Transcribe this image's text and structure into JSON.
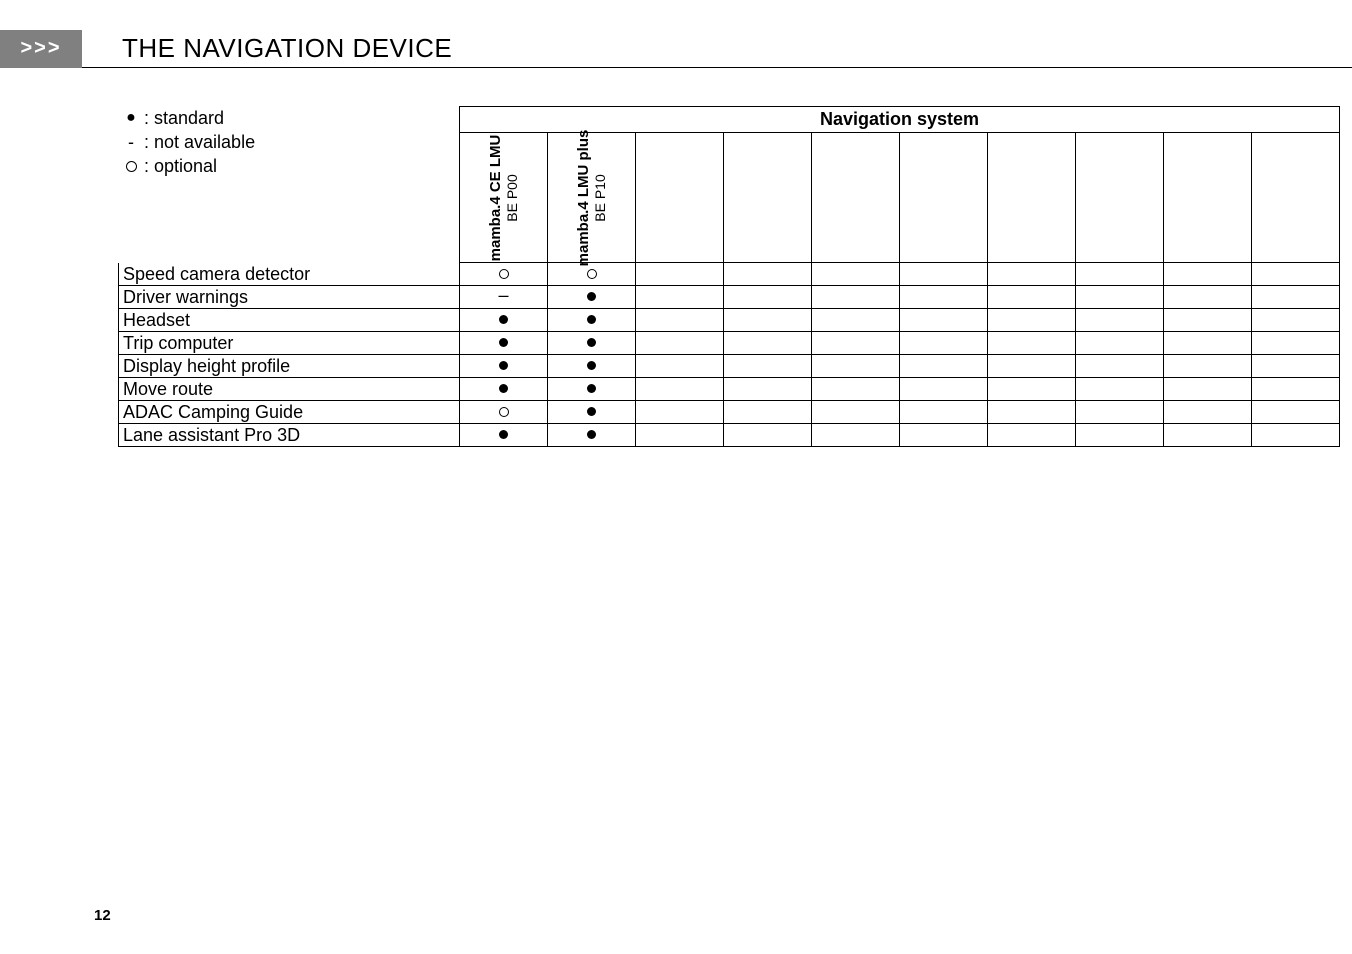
{
  "header": {
    "arrow": ">>>",
    "title": "THE NAVIGATION DEVICE"
  },
  "legend": {
    "standard": {
      "symbol": "●",
      "label": "standard"
    },
    "not_available": {
      "symbol": "-",
      "label": "not available"
    },
    "optional": {
      "symbol": "○",
      "label": "optional"
    }
  },
  "table": {
    "group_header": "Navigation system",
    "columns": [
      {
        "line1": "mamba.4 CE LMU",
        "line2": "BE P00"
      },
      {
        "line1": "mamba.4 LMU plus",
        "line2": "BE P10"
      },
      {
        "line1": "",
        "line2": ""
      },
      {
        "line1": "",
        "line2": ""
      },
      {
        "line1": "",
        "line2": ""
      },
      {
        "line1": "",
        "line2": ""
      },
      {
        "line1": "",
        "line2": ""
      },
      {
        "line1": "",
        "line2": ""
      },
      {
        "line1": "",
        "line2": ""
      },
      {
        "line1": "",
        "line2": ""
      }
    ],
    "rows": [
      {
        "feature": "Speed camera detector",
        "values": [
          "optional",
          "optional",
          "",
          "",
          "",
          "",
          "",
          "",
          "",
          ""
        ]
      },
      {
        "feature": "Driver warnings",
        "values": [
          "na",
          "standard",
          "",
          "",
          "",
          "",
          "",
          "",
          "",
          ""
        ]
      },
      {
        "feature": "Headset",
        "values": [
          "standard",
          "standard",
          "",
          "",
          "",
          "",
          "",
          "",
          "",
          ""
        ]
      },
      {
        "feature": "Trip computer",
        "values": [
          "standard",
          "standard",
          "",
          "",
          "",
          "",
          "",
          "",
          "",
          ""
        ]
      },
      {
        "feature": "Display height profile",
        "values": [
          "standard",
          "standard",
          "",
          "",
          "",
          "",
          "",
          "",
          "",
          ""
        ]
      },
      {
        "feature": "Move route",
        "values": [
          "standard",
          "standard",
          "",
          "",
          "",
          "",
          "",
          "",
          "",
          ""
        ]
      },
      {
        "feature": "ADAC Camping Guide",
        "values": [
          "optional",
          "standard",
          "",
          "",
          "",
          "",
          "",
          "",
          "",
          ""
        ]
      },
      {
        "feature": "Lane assistant Pro 3D",
        "values": [
          "standard",
          "standard",
          "",
          "",
          "",
          "",
          "",
          "",
          "",
          ""
        ]
      }
    ]
  },
  "page_number": "12",
  "colors": {
    "header_box_bg": "#808080",
    "header_box_fg": "#ffffff",
    "border": "#000000",
    "text": "#000000",
    "page_bg": "#ffffff"
  },
  "typography": {
    "title_fontsize_pt": 20,
    "body_fontsize_pt": 13,
    "legend_fontsize_pt": 13,
    "header_bold": true
  }
}
